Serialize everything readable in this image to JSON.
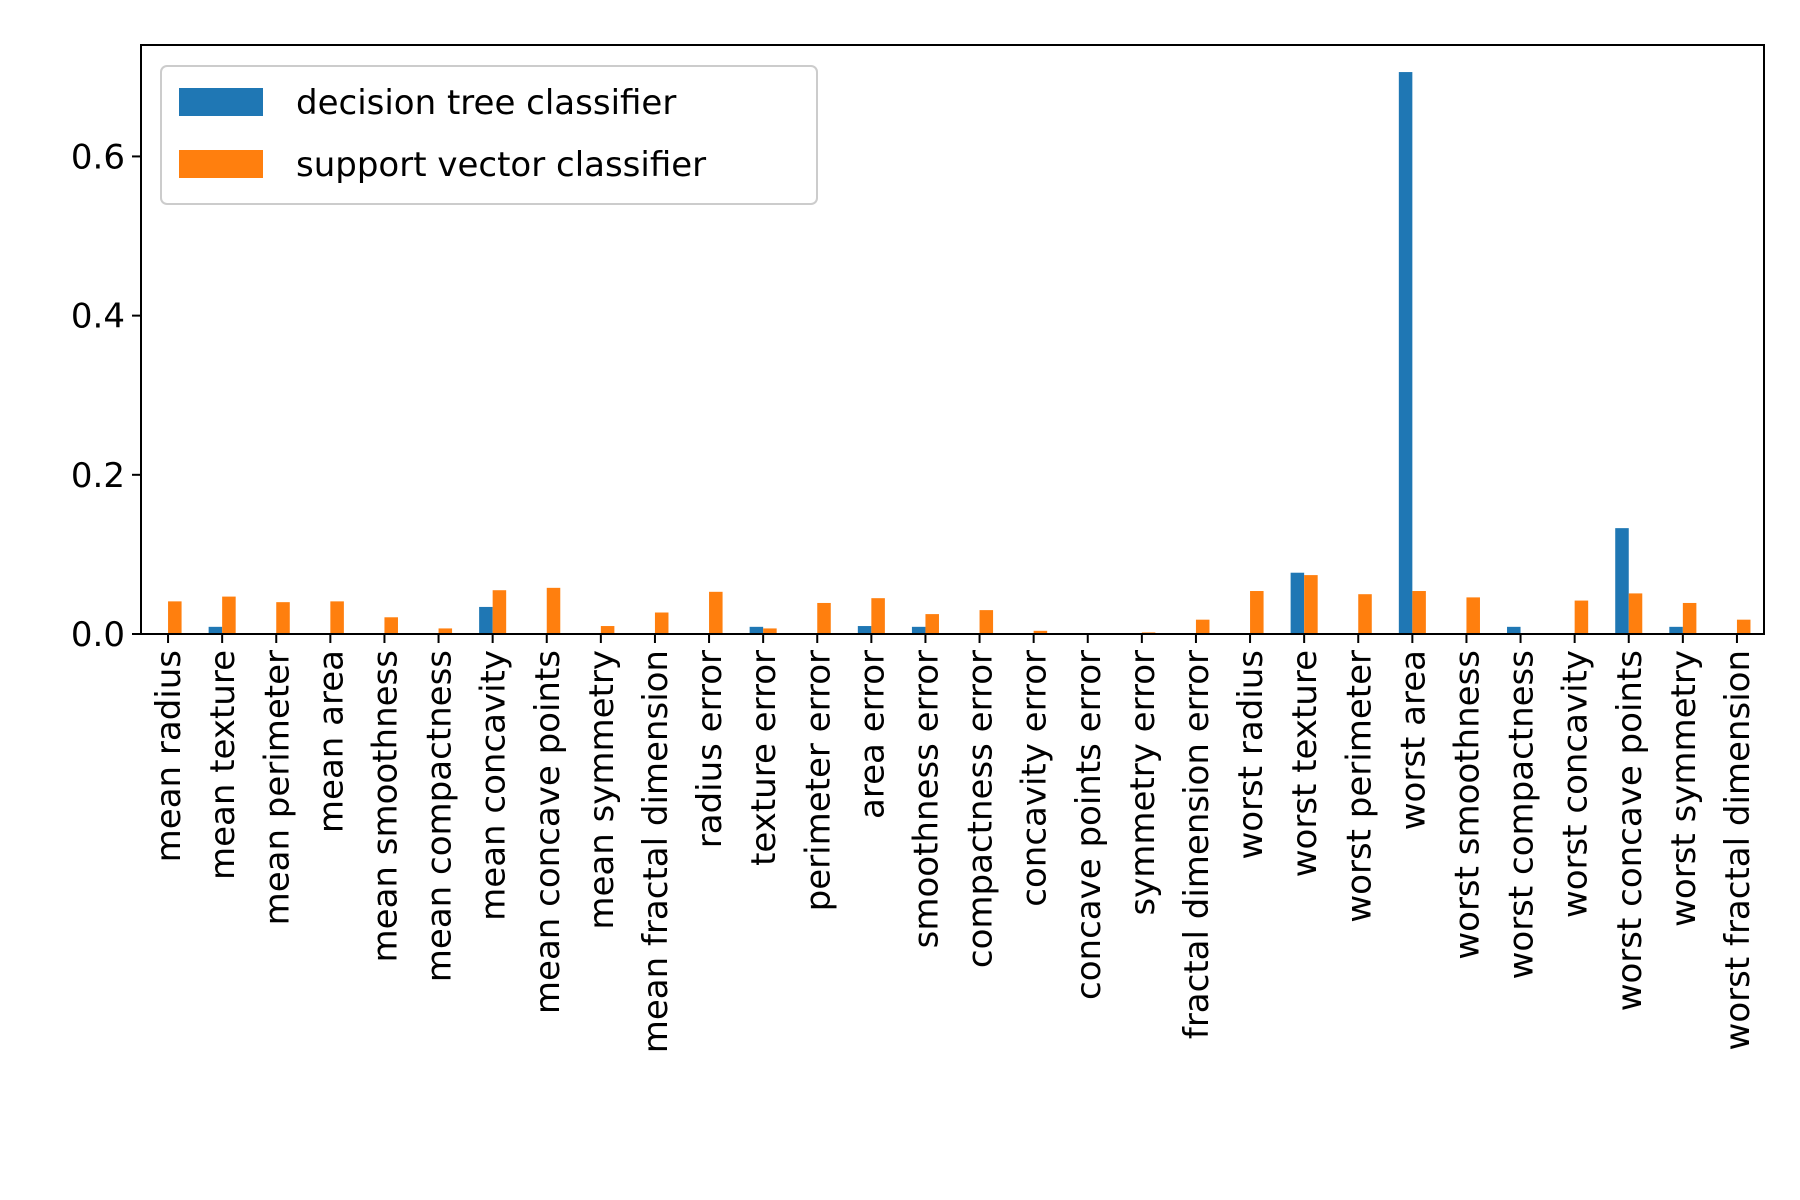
{
  "chart_data": {
    "type": "bar",
    "title": "",
    "xlabel": "",
    "ylabel": "",
    "ylim": [
      0,
      0.74
    ],
    "yticks": [
      0.0,
      0.2,
      0.4,
      0.6
    ],
    "ytick_labels": [
      "0.0",
      "0.2",
      "0.4",
      "0.6"
    ],
    "grid": false,
    "legend_position": "top-left",
    "categories": [
      "mean radius",
      "mean texture",
      "mean perimeter",
      "mean area",
      "mean smoothness",
      "mean compactness",
      "mean concavity",
      "mean concave points",
      "mean symmetry",
      "mean fractal dimension",
      "radius error",
      "texture error",
      "perimeter error",
      "area error",
      "smoothness error",
      "compactness error",
      "concavity error",
      "concave points error",
      "symmetry error",
      "fractal dimension error",
      "worst radius",
      "worst texture",
      "worst perimeter",
      "worst area",
      "worst smoothness",
      "worst compactness",
      "worst concavity",
      "worst concave points",
      "worst symmetry",
      "worst fractal dimension"
    ],
    "series": [
      {
        "name": "decision tree classifier",
        "color": "#1f77b4",
        "values": [
          0,
          0.009,
          0,
          0,
          0,
          0,
          0.034,
          0,
          0,
          0,
          0,
          0.009,
          0,
          0.01,
          0.009,
          0,
          0,
          0,
          0,
          0,
          0,
          0.077,
          0,
          0.706,
          0,
          0.009,
          0,
          0.133,
          0.009,
          0
        ]
      },
      {
        "name": "support vector classifier",
        "color": "#ff7f0e",
        "values": [
          0.041,
          0.047,
          0.04,
          0.041,
          0.021,
          0.007,
          0.055,
          0.058,
          0.01,
          0.027,
          0.053,
          0.007,
          0.039,
          0.045,
          0.025,
          0.03,
          0.004,
          0.0,
          0.002,
          0.018,
          0.054,
          0.074,
          0.05,
          0.054,
          0.046,
          0.0,
          0.042,
          0.051,
          0.039,
          0.018
        ]
      }
    ]
  }
}
